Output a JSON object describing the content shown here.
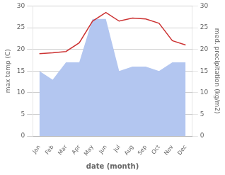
{
  "chart_data": {
    "type": "line",
    "xlabel": "date (month)",
    "ylabel": "max temp (C)",
    "y2label": "med. precipitation (kg/m2)",
    "categories": [
      "Jan",
      "Feb",
      "Mar",
      "Apr",
      "May",
      "Jun",
      "Jul",
      "Aug",
      "Sep",
      "Oct",
      "Nov",
      "Dec"
    ],
    "series": [
      {
        "type": "area",
        "axis": "y2",
        "color": "#b3c6f0",
        "values": [
          15.0,
          13.0,
          17.0,
          17.0,
          27.0,
          27.0,
          15.0,
          16.0,
          16.0,
          15.0,
          17.0,
          17.0
        ]
      },
      {
        "type": "line",
        "color": "#cc3333",
        "values": [
          19.0,
          19.2,
          19.5,
          21.5,
          26.5,
          28.5,
          26.5,
          27.2,
          27.0,
          26.0,
          22.0,
          21.0
        ]
      }
    ],
    "ylim": [
      0,
      30
    ],
    "yticks": [
      0,
      5,
      10,
      15,
      20,
      25,
      30
    ],
    "y2lim": [
      0,
      30
    ],
    "y2ticks": [
      0,
      5,
      10,
      15,
      20,
      25,
      30
    ],
    "grid": true
  }
}
